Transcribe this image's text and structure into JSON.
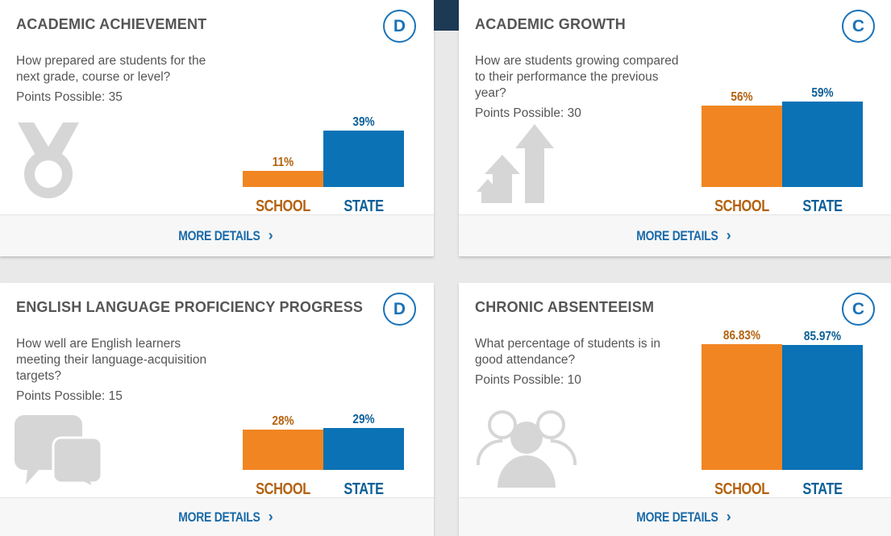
{
  "colors": {
    "school": "#f18522",
    "state": "#0b72b5",
    "accent": "#1a73b8"
  },
  "cards": [
    {
      "title": "ACADEMIC ACHIEVEMENT",
      "grade": "D",
      "question": "How prepared are students for the next grade, course or level?",
      "points": "Points Possible: 35",
      "icon": "medal-icon",
      "chart_data": {
        "type": "bar",
        "categories": [
          "SCHOOL",
          "STATE"
        ],
        "values": [
          11,
          39
        ],
        "labels": [
          "11%",
          "39%"
        ],
        "ylim": [
          0,
          100
        ]
      },
      "more": "MORE DETAILS"
    },
    {
      "title": "ACADEMIC GROWTH",
      "grade": "C",
      "question": "How are students growing compared to their performance the previous year?",
      "points": "Points Possible: 30",
      "icon": "growth-arrows-icon",
      "chart_data": {
        "type": "bar",
        "categories": [
          "SCHOOL",
          "STATE"
        ],
        "values": [
          56,
          59
        ],
        "labels": [
          "56%",
          "59%"
        ],
        "ylim": [
          0,
          100
        ]
      },
      "more": "MORE DETAILS"
    },
    {
      "title": "ENGLISH LANGUAGE PROFICIENCY PROGRESS",
      "grade": "D",
      "question": "How well are English learners meeting their language-acquisition targets?",
      "points": "Points Possible: 15",
      "icon": "chat-bubbles-icon",
      "chart_data": {
        "type": "bar",
        "categories": [
          "SCHOOL",
          "STATE"
        ],
        "values": [
          28,
          29
        ],
        "labels": [
          "28%",
          "29%"
        ],
        "ylim": [
          0,
          100
        ]
      },
      "more": "MORE DETAILS"
    },
    {
      "title": "CHRONIC ABSENTEEISM",
      "grade": "C",
      "question": "What percentage of students is in good attendance?",
      "points": "Points Possible: 10",
      "icon": "people-group-icon",
      "chart_data": {
        "type": "bar",
        "categories": [
          "SCHOOL",
          "STATE"
        ],
        "values": [
          86.83,
          85.97
        ],
        "labels": [
          "86.83%",
          "85.97%"
        ],
        "ylim": [
          0,
          100
        ]
      },
      "more": "MORE DETAILS"
    }
  ]
}
